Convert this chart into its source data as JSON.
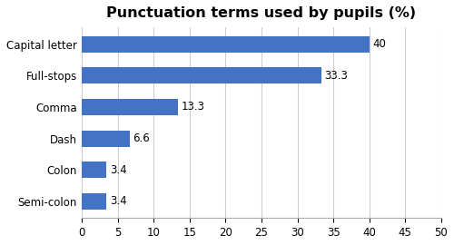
{
  "title": "Punctuation terms used by pupils (%)",
  "categories": [
    "Capital letter",
    "Full-stops",
    "Comma",
    "Dash",
    "Colon",
    "Semi-colon"
  ],
  "values": [
    40,
    33.3,
    13.3,
    6.6,
    3.4,
    3.4
  ],
  "bar_color": "#4472C4",
  "xlim": [
    0,
    50
  ],
  "xticks": [
    0,
    5,
    10,
    15,
    20,
    25,
    30,
    35,
    40,
    45,
    50
  ],
  "label_fontsize": 8.5,
  "title_fontsize": 11.5,
  "tick_fontsize": 8.5,
  "ytick_fontsize": 8.5,
  "background_color": "#ffffff",
  "grid_color": "#cccccc",
  "bar_height": 0.52
}
